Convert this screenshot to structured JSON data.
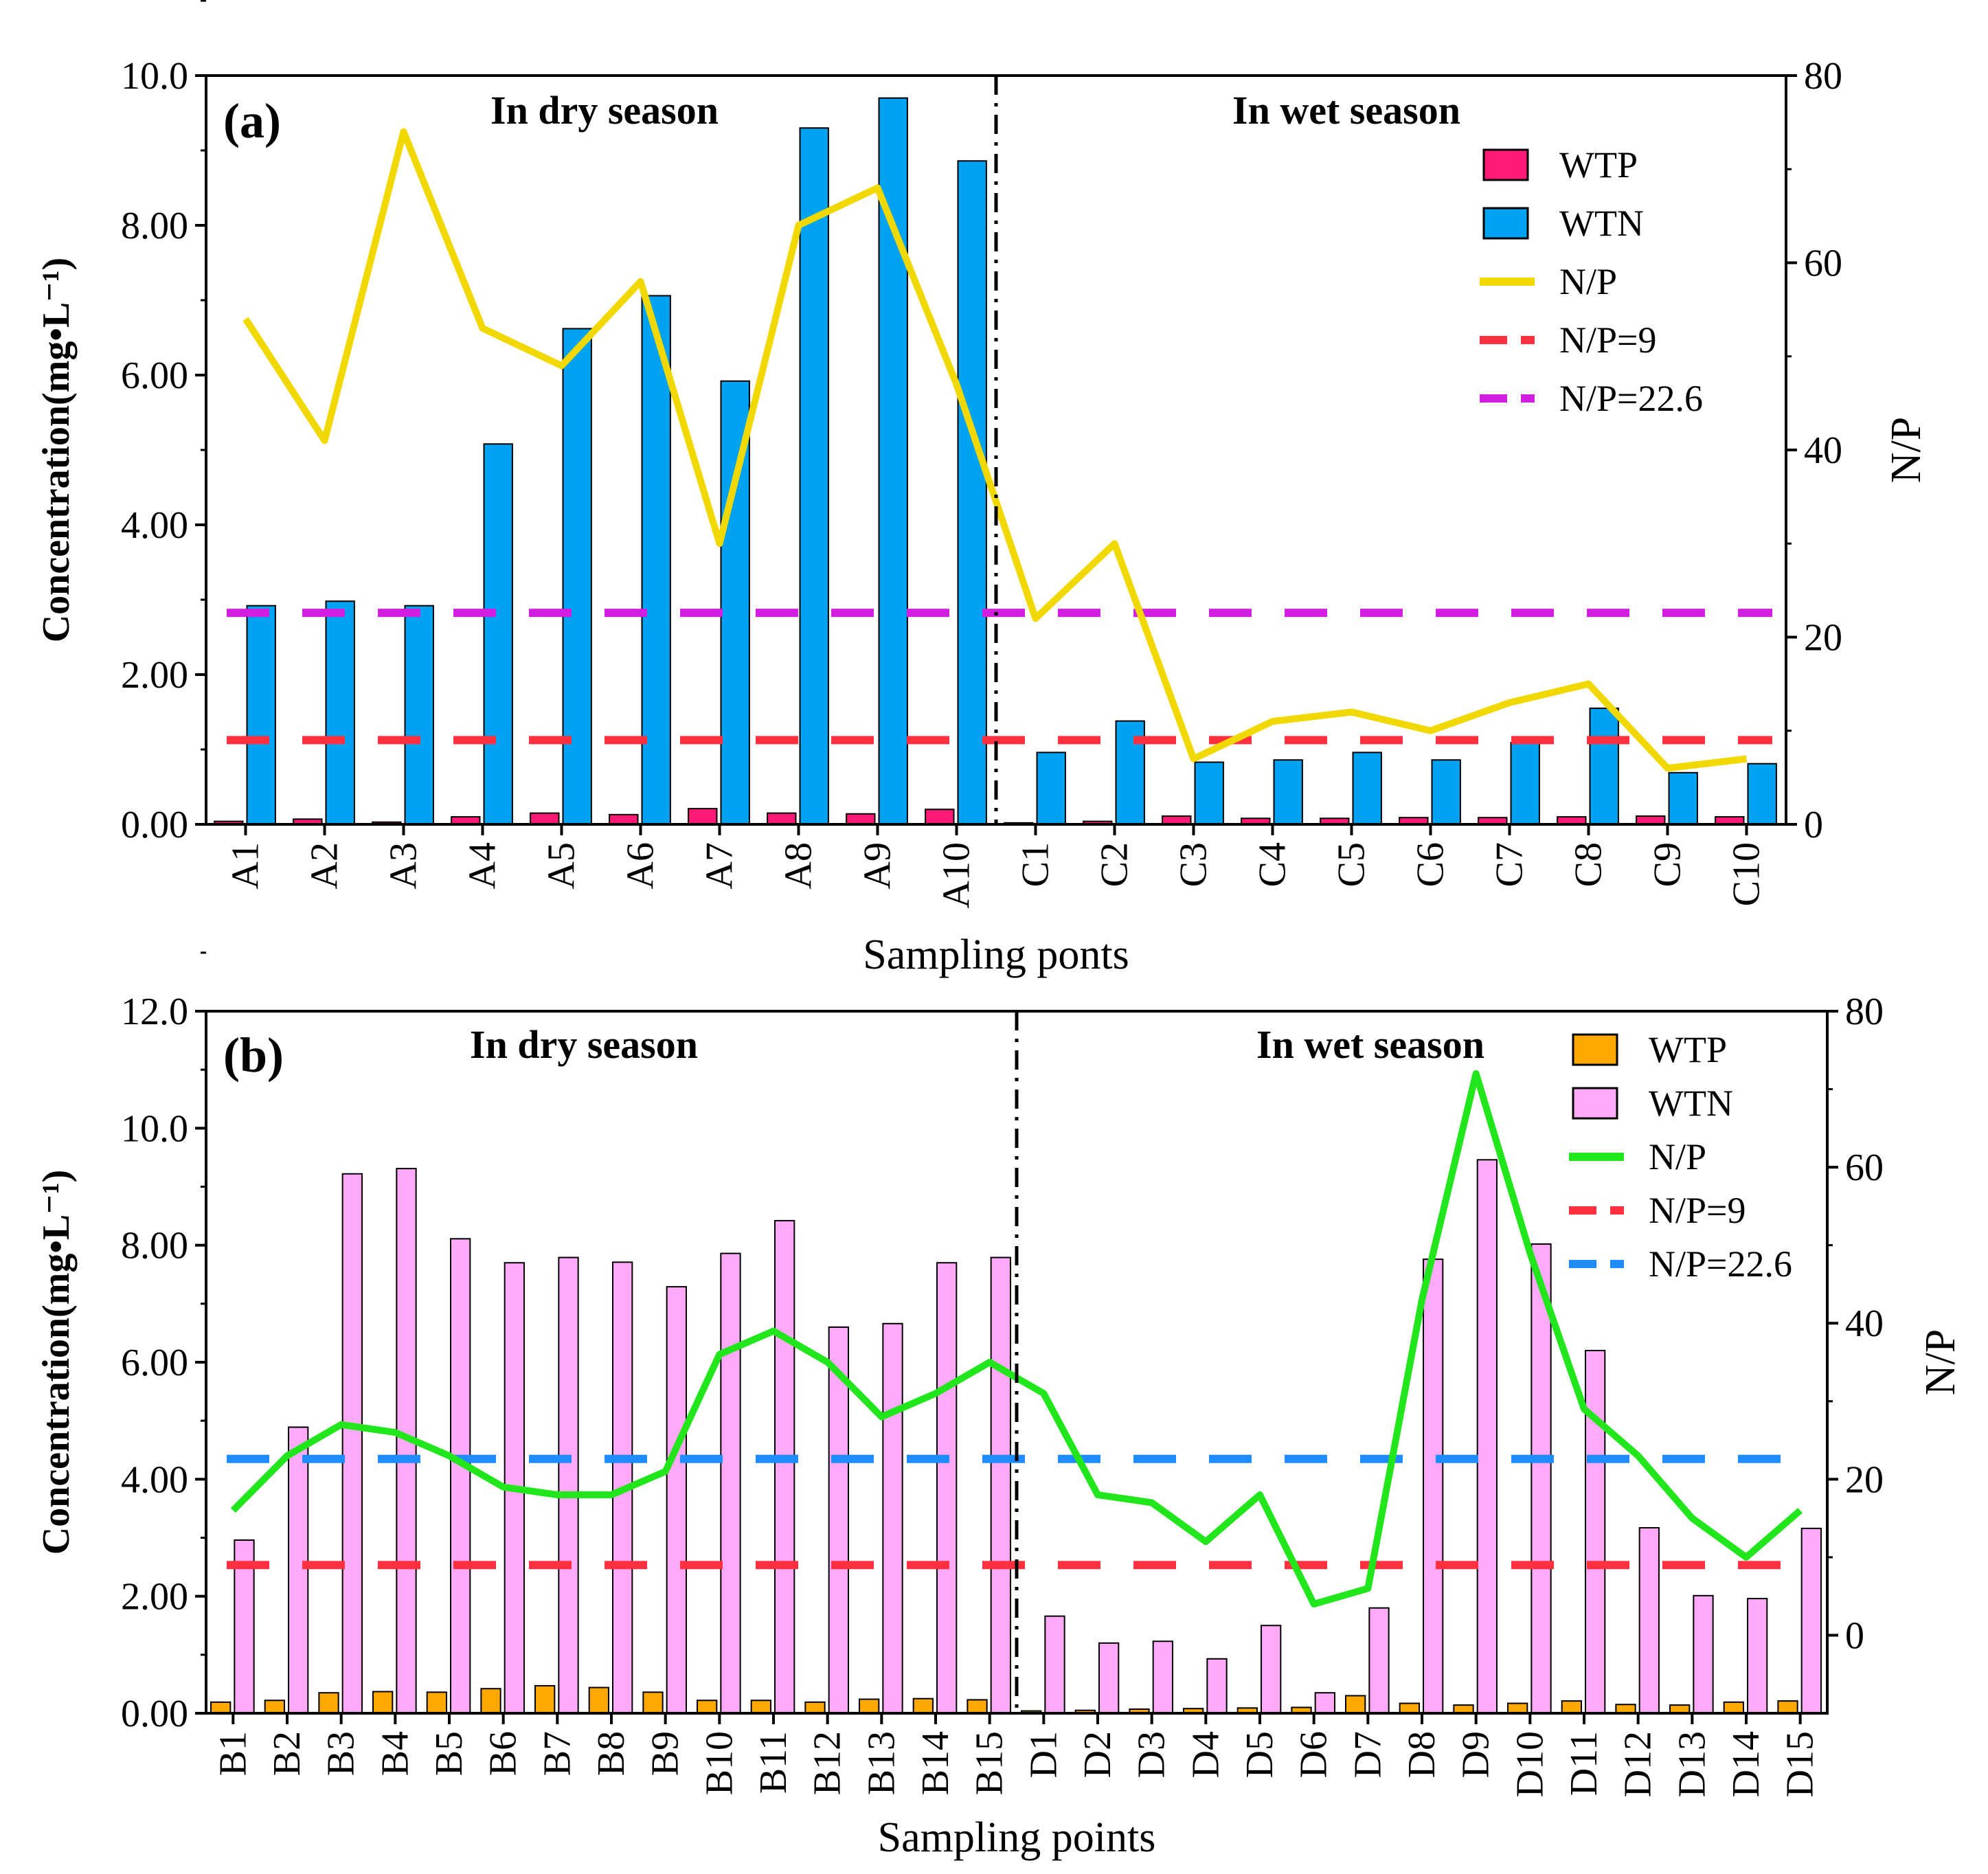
{
  "colors": {
    "axis": "#000000",
    "a_wtp": "#ff1a75",
    "a_wtn": "#00a2f2",
    "a_np": "#f0d800",
    "b_wtp": "#ffa800",
    "b_wtn": "#ffaaf8",
    "b_np": "#22e61c",
    "ref9": "#ff3040",
    "ref22_a": "#d21ee0",
    "ref22_b": "#1e8cff"
  },
  "chart_data": [
    {
      "panel": "(a)",
      "type": "bar",
      "xlabel": "Sampling ponts",
      "ylabel": "Concentration(mg•L⁻¹)",
      "y2label": "N/P",
      "ylim": [
        0,
        10
      ],
      "y2lim": [
        0,
        80
      ],
      "yticks": [
        "0.00",
        "2.00",
        "4.00",
        "6.00",
        "8.00",
        "10.0"
      ],
      "y2ticks": [
        "0",
        "20",
        "40",
        "60",
        "80"
      ],
      "season_dry": "In dry season",
      "season_wet": "In wet season",
      "split_after_index": 9,
      "categories": [
        "A1",
        "A2",
        "A3",
        "A4",
        "A5",
        "A6",
        "A7",
        "A8",
        "A9",
        "A10",
        "C1",
        "C2",
        "C3",
        "C4",
        "C5",
        "C6",
        "C7",
        "C8",
        "C9",
        "C10"
      ],
      "series": [
        {
          "name": "WTP",
          "axis": "left",
          "values": [
            0.04,
            0.07,
            0.03,
            0.1,
            0.15,
            0.13,
            0.21,
            0.15,
            0.14,
            0.2,
            0.02,
            0.04,
            0.11,
            0.08,
            0.08,
            0.09,
            0.09,
            0.1,
            0.11,
            0.1
          ]
        },
        {
          "name": "WTN",
          "axis": "left",
          "values": [
            2.92,
            2.98,
            2.92,
            5.08,
            6.62,
            7.06,
            5.92,
            9.3,
            9.7,
            8.86,
            0.96,
            1.38,
            0.83,
            0.86,
            0.96,
            0.86,
            1.09,
            1.55,
            0.69,
            0.81
          ]
        },
        {
          "name": "N/P",
          "axis": "right",
          "values": [
            54,
            41,
            74,
            53,
            49,
            58,
            30,
            64,
            68,
            47,
            22,
            30,
            7,
            11,
            12,
            10,
            13,
            15,
            6,
            7
          ]
        }
      ],
      "legend": [
        "WTP",
        "WTN",
        "N/P",
        "N/P=9",
        "N/P=22.6"
      ],
      "reference_lines": [
        {
          "label": "N/P=9",
          "value": 9
        },
        {
          "label": "N/P=22.6",
          "value": 22.6
        }
      ]
    },
    {
      "panel": "(b)",
      "type": "bar",
      "xlabel": "Sampling points",
      "ylabel": "Concentration(mg•L⁻¹)",
      "y2label": "N/P",
      "ylim": [
        0,
        12
      ],
      "y2lim": [
        -10,
        80
      ],
      "yticks": [
        "0.00",
        "2.00",
        "4.00",
        "6.00",
        "8.00",
        "10.0",
        "12.0"
      ],
      "y2ticks": [
        "0",
        "20",
        "40",
        "60",
        "80"
      ],
      "season_dry": "In dry season",
      "season_wet": "In wet season",
      "split_after_index": 14,
      "categories": [
        "B1",
        "B2",
        "B3",
        "B4",
        "B5",
        "B6",
        "B7",
        "B8",
        "B9",
        "B10",
        "B11",
        "B12",
        "B13",
        "B14",
        "B15",
        "D1",
        "D2",
        "D3",
        "D4",
        "D5",
        "D6",
        "D7",
        "D8",
        "D9",
        "D10",
        "D11",
        "D12",
        "D13",
        "D14",
        "D15"
      ],
      "series": [
        {
          "name": "WTP",
          "axis": "left",
          "values": [
            0.19,
            0.22,
            0.35,
            0.37,
            0.36,
            0.42,
            0.47,
            0.44,
            0.36,
            0.22,
            0.22,
            0.19,
            0.24,
            0.25,
            0.23,
            0.04,
            0.05,
            0.07,
            0.08,
            0.09,
            0.1,
            0.3,
            0.17,
            0.14,
            0.17,
            0.21,
            0.15,
            0.14,
            0.19,
            0.21
          ]
        },
        {
          "name": "WTN",
          "axis": "left",
          "values": [
            2.96,
            4.89,
            9.22,
            9.31,
            8.11,
            7.7,
            7.79,
            7.71,
            7.29,
            7.86,
            8.42,
            6.6,
            6.66,
            7.7,
            7.79,
            1.66,
            1.2,
            1.23,
            0.93,
            1.5,
            0.35,
            1.8,
            7.76,
            9.46,
            8.02,
            6.2,
            3.17,
            2.01,
            1.96,
            3.16
          ]
        },
        {
          "name": "N/P",
          "axis": "right",
          "values": [
            16,
            23,
            27,
            26,
            23,
            19,
            18,
            18,
            21,
            36,
            39,
            35,
            28,
            31,
            35,
            31,
            18,
            17,
            12,
            18,
            4,
            6,
            43,
            72,
            49,
            29,
            23,
            15,
            10,
            16
          ]
        }
      ],
      "legend": [
        "WTP",
        "WTN",
        "N/P",
        "N/P=9",
        "N/P=22.6"
      ],
      "reference_lines": [
        {
          "label": "N/P=9",
          "value": 9
        },
        {
          "label": "N/P=22.6",
          "value": 22.6
        }
      ]
    }
  ]
}
